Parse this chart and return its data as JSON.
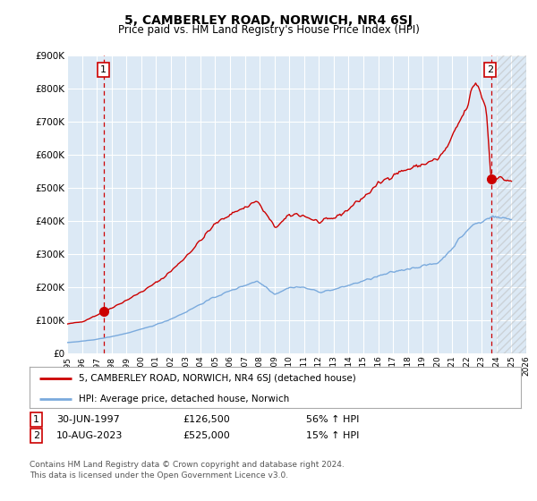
{
  "title": "5, CAMBERLEY ROAD, NORWICH, NR4 6SJ",
  "subtitle": "Price paid vs. HM Land Registry's House Price Index (HPI)",
  "title_fontsize": 10,
  "subtitle_fontsize": 8.5,
  "background_color": "#ffffff",
  "plot_bg_color": "#dce9f5",
  "grid_color": "#ffffff",
  "sale1_date_x": 1997.5,
  "sale1_price": 126500,
  "sale2_date_x": 2023.62,
  "sale2_price": 525000,
  "sale1_label": "30-JUN-1997",
  "sale2_label": "10-AUG-2023",
  "sale1_pct": "56% ↑ HPI",
  "sale2_pct": "15% ↑ HPI",
  "legend_line1": "5, CAMBERLEY ROAD, NORWICH, NR4 6SJ (detached house)",
  "legend_line2": "HPI: Average price, detached house, Norwich",
  "footer1": "Contains HM Land Registry data © Crown copyright and database right 2024.",
  "footer2": "This data is licensed under the Open Government Licence v3.0.",
  "red_line_color": "#cc0000",
  "blue_line_color": "#7aaadd",
  "dashed_color": "#cc0000",
  "ylim": [
    0,
    900000
  ],
  "xlim": [
    1995.0,
    2026.0
  ],
  "yticks": [
    0,
    100000,
    200000,
    300000,
    400000,
    500000,
    600000,
    700000,
    800000,
    900000
  ],
  "ytick_labels": [
    "£0",
    "£100K",
    "£200K",
    "£300K",
    "£400K",
    "£500K",
    "£600K",
    "£700K",
    "£800K",
    "£900K"
  ],
  "xticks": [
    1995,
    1996,
    1997,
    1998,
    1999,
    2000,
    2001,
    2002,
    2003,
    2004,
    2005,
    2006,
    2007,
    2008,
    2009,
    2010,
    2011,
    2012,
    2013,
    2014,
    2015,
    2016,
    2017,
    2018,
    2019,
    2020,
    2021,
    2022,
    2023,
    2024,
    2025,
    2026
  ]
}
